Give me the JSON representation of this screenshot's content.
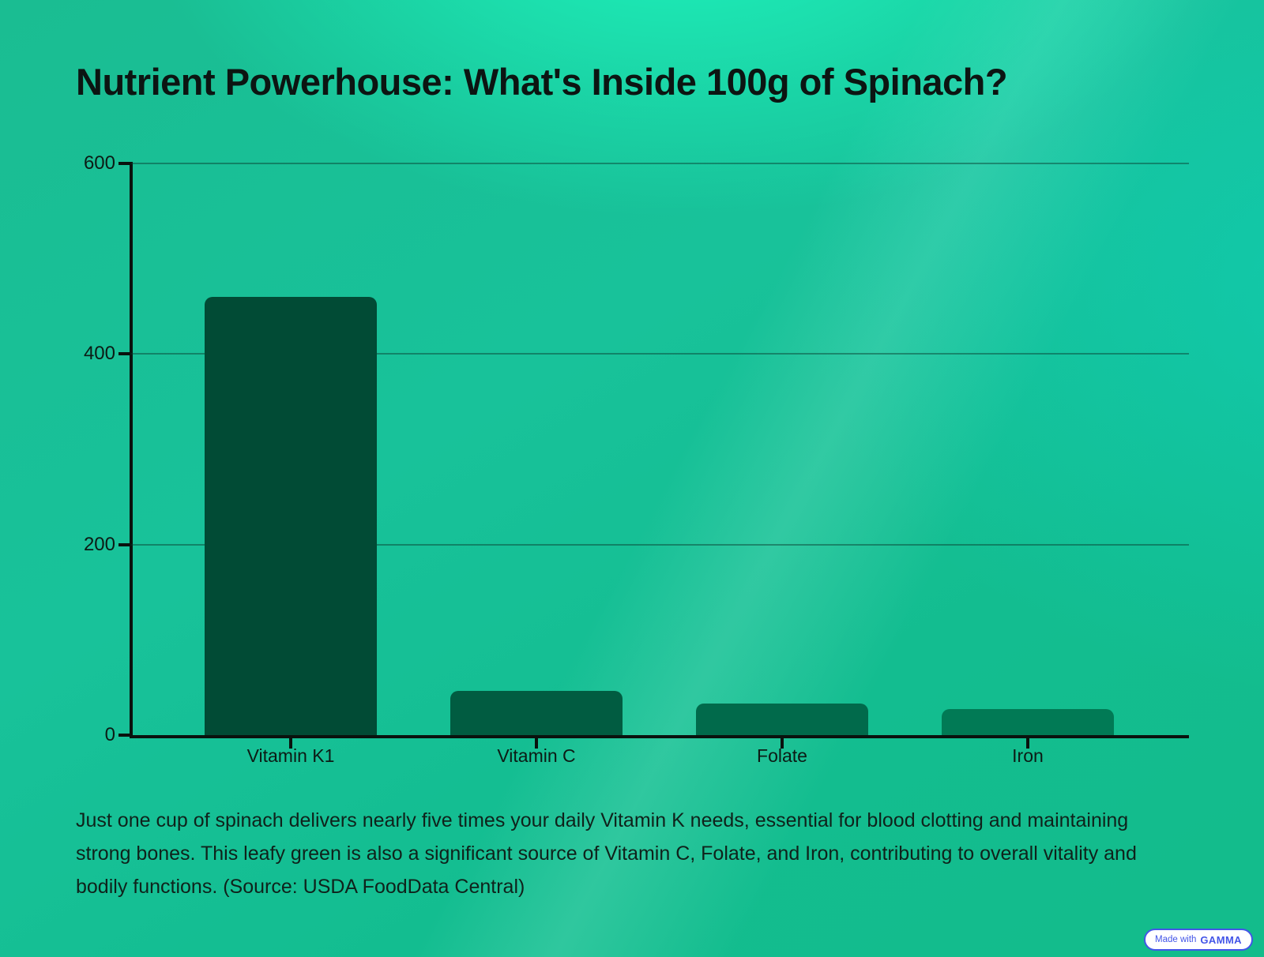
{
  "chart_data": {
    "type": "bar",
    "title": "Nutrient Powerhouse: What's Inside 100g of Spinach?",
    "categories": [
      "Vitamin K1",
      "Vitamin C",
      "Folate",
      "Iron"
    ],
    "values": [
      460,
      46,
      33,
      27
    ],
    "bar_colors": [
      "#014b35",
      "#015c41",
      "#016a4b",
      "#017a55"
    ],
    "xlabel": "",
    "ylabel": "",
    "ylim": [
      0,
      600
    ],
    "yticks": [
      0,
      200,
      400,
      600
    ],
    "grid": true,
    "legend": false
  },
  "caption": "Just one cup of spinach delivers nearly five times your daily Vitamin K needs, essential for blood clotting and maintaining strong bones. This leafy green is also a significant source of Vitamin C, Folate, and Iron, contributing to overall vitality and bodily functions. (Source: USDA FoodData Central)",
  "badge": {
    "prefix": "Made with",
    "brand": "GAMMA"
  },
  "colors": {
    "axis": "#0a120e",
    "gridline": "rgba(8,58,44,0.45)",
    "badge_blue": "#4355e8",
    "background_base": "#14bd8f",
    "background_highlight": "#1fffc5"
  }
}
